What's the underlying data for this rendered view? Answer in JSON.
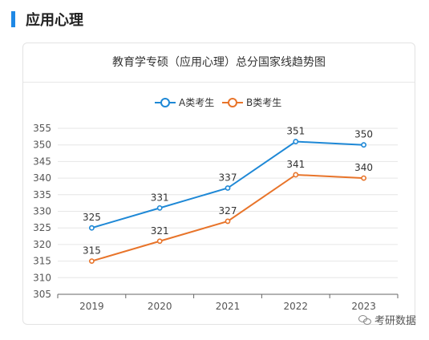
{
  "section": {
    "title": "应用心理"
  },
  "watermark": {
    "text": "考研数据"
  },
  "chart_data": {
    "type": "line",
    "title": "教育学专硕（应用心理）总分国家线趋势图",
    "categories": [
      "2019",
      "2020",
      "2021",
      "2022",
      "2023"
    ],
    "yticks": [
      305,
      310,
      315,
      320,
      325,
      330,
      335,
      340,
      345,
      350,
      355
    ],
    "ylim": [
      305,
      355
    ],
    "xlabel": "",
    "ylabel": "",
    "grid": true,
    "legend_position": "top-center",
    "series": [
      {
        "name": "A类考生",
        "color": "#1e88d6",
        "values": [
          325,
          331,
          337,
          351,
          350
        ]
      },
      {
        "name": "B类考生",
        "color": "#e8742a",
        "values": [
          315,
          321,
          327,
          341,
          340
        ]
      }
    ]
  }
}
